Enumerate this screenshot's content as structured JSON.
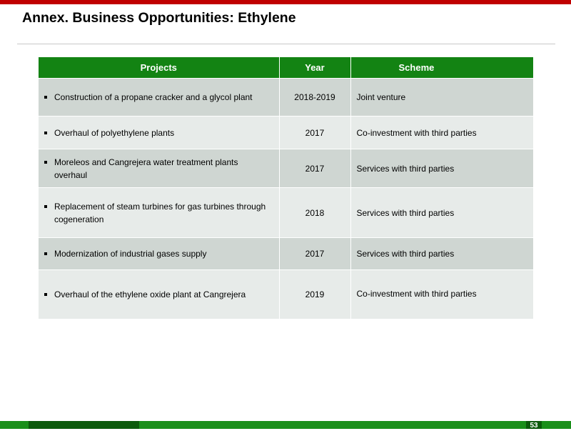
{
  "title": "Annex. Business Opportunities: Ethylene",
  "table": {
    "headers": {
      "projects": "Projects",
      "year": "Year",
      "scheme": "Scheme"
    },
    "rows": [
      {
        "project": "Construction of a propane cracker and a glycol plant",
        "year": "2018-2019",
        "scheme": "Joint venture"
      },
      {
        "project": "Overhaul of polyethylene plants",
        "year": "2017",
        "scheme": "Co-investment with third parties"
      },
      {
        "project": "Moreleos and Cangrejera water treatment plants overhaul",
        "year": "2017",
        "scheme": "Services with third parties"
      },
      {
        "project": "Replacement of steam turbines for gas turbines through cogeneration",
        "year": "2018",
        "scheme": "Services with third parties"
      },
      {
        "project": "Modernization of industrial gases supply",
        "year": "2017",
        "scheme": "Services with third parties"
      },
      {
        "project": "Overhaul of the ethylene oxide plant at Cangrejera",
        "year": "2019",
        "scheme": "Co-investment with third parties"
      }
    ]
  },
  "page_number": "53",
  "colors": {
    "accent_red": "#c00000",
    "header_green": "#138313",
    "footer_green": "#1a8f1a",
    "footer_dark_green": "#0b5a0b",
    "row_dark": "#cfd6d2",
    "row_light": "#e7ebe9"
  }
}
